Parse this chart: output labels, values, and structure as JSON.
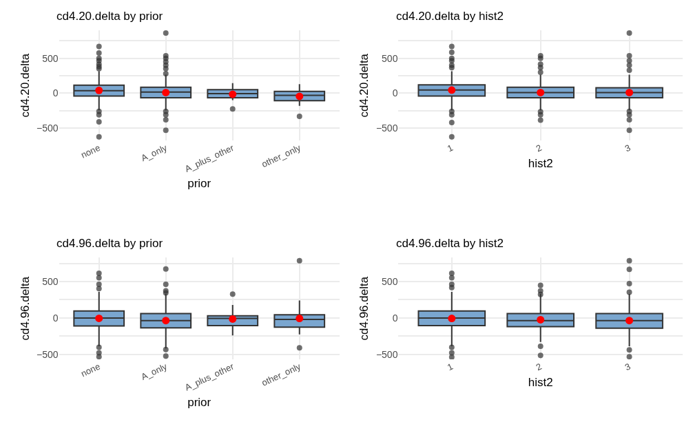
{
  "chart_data": [
    {
      "type": "box",
      "title": "cd4.20.delta by prior",
      "xlabel": "prior",
      "ylabel": "cd4.20.delta",
      "categories": [
        "none",
        "A_only",
        "A_plus_other",
        "other_only"
      ],
      "ylim": [
        -680,
        900
      ],
      "yticks": [
        -500,
        {
          "value": -250,
          "label": null
        },
        0,
        {
          "value": 250,
          "label": null
        },
        500,
        {
          "value": 750,
          "label": null
        }
      ],
      "grid": true,
      "series": [
        {
          "color": "#7aa6cf",
          "boxes": [
            {
              "low": -245,
              "q1": -40,
              "median": 35,
              "q3": 115,
              "high": 315,
              "mean": 40,
              "outliers": [
                670,
                575,
                500,
                465,
                415,
                380,
                350,
                -260,
                -310,
                -410,
                -625
              ]
            },
            {
              "low": -245,
              "q1": -65,
              "median": 17,
              "q3": 85,
              "high": 265,
              "mean": 10,
              "outliers": [
                860,
                535,
                500,
                450,
                400,
                350,
                280,
                -260,
                -310,
                -380,
                -530
              ]
            },
            {
              "low": -100,
              "q1": -65,
              "median": -5,
              "q3": 50,
              "high": 145,
              "mean": -15,
              "outliers": [
                -225
              ]
            },
            {
              "low": -180,
              "q1": -108,
              "median": -30,
              "q3": 25,
              "high": 130,
              "mean": -45,
              "outliers": [
                -330
              ]
            }
          ]
        }
      ]
    },
    {
      "type": "box",
      "title": "cd4.20.delta by hist2",
      "xlabel": "hist2",
      "ylabel": "cd4.20.delta",
      "categories": [
        "1",
        "2",
        "3"
      ],
      "ylim": [
        -680,
        900
      ],
      "yticks": [
        -500,
        {
          "value": -250,
          "label": null
        },
        0,
        {
          "value": 250,
          "label": null
        },
        500,
        {
          "value": 750,
          "label": null
        }
      ],
      "grid": true,
      "series": [
        {
          "color": "#7aa6cf",
          "boxes": [
            {
              "low": -245,
              "q1": -40,
              "median": 45,
              "q3": 120,
              "high": 315,
              "mean": 45,
              "outliers": [
                670,
                585,
                500,
                465,
                400,
                365,
                -260,
                -310,
                -420,
                -625
              ]
            },
            {
              "low": -245,
              "q1": -65,
              "median": 10,
              "q3": 85,
              "high": 265,
              "mean": 10,
              "outliers": [
                535,
                500,
                415,
                365,
                300,
                -265,
                -310,
                -385
              ]
            },
            {
              "low": -245,
              "q1": -65,
              "median": 10,
              "q3": 78,
              "high": 265,
              "mean": 10,
              "outliers": [
                860,
                535,
                465,
                400,
                330,
                -260,
                -310,
                -380,
                -530
              ]
            }
          ]
        }
      ]
    },
    {
      "type": "box",
      "title": "cd4.96.delta by prior",
      "xlabel": "prior",
      "ylabel": "cd4.96.delta",
      "categories": [
        "none",
        "A_only",
        "A_plus_other",
        "other_only"
      ],
      "ylim": [
        -570,
        830
      ],
      "yticks": [
        -500,
        {
          "value": -250,
          "label": null
        },
        0,
        {
          "value": 250,
          "label": null
        },
        500,
        {
          "value": 750,
          "label": null
        }
      ],
      "grid": true,
      "series": [
        {
          "color": "#7aa6cf",
          "boxes": [
            {
              "low": -390,
              "q1": -111,
              "median": 0,
              "q3": 96,
              "high": 360,
              "mean": -5,
              "outliers": [
                614,
                554,
                464,
                404,
                -404,
                -479,
                -533
              ]
            },
            {
              "low": -420,
              "q1": -135,
              "median": -36,
              "q3": 60,
              "high": 330,
              "mean": -36,
              "outliers": [
                674,
                464,
                374,
                344,
                -434,
                -524
              ]
            },
            {
              "low": -240,
              "q1": -105,
              "median": -6,
              "q3": 30,
              "high": 180,
              "mean": -15,
              "outliers": [
                329
              ]
            },
            {
              "low": -225,
              "q1": -126,
              "median": -21,
              "q3": 45,
              "high": 240,
              "mean": -6,
              "outliers": [
                787,
                -410
              ]
            }
          ]
        }
      ]
    },
    {
      "type": "box",
      "title": "cd4.96.delta by hist2",
      "xlabel": "hist2",
      "ylabel": "cd4.96.delta",
      "categories": [
        "1",
        "2",
        "3"
      ],
      "ylim": [
        -570,
        830
      ],
      "yticks": [
        -500,
        {
          "value": -250,
          "label": null
        },
        0,
        {
          "value": 250,
          "label": null
        },
        500,
        {
          "value": 750,
          "label": null
        }
      ],
      "grid": true,
      "series": [
        {
          "color": "#7aa6cf",
          "boxes": [
            {
              "low": -390,
              "q1": -105,
              "median": 0,
              "q3": 96,
              "high": 360,
              "mean": -6,
              "outliers": [
                614,
                554,
                464,
                419,
                -404,
                -479,
                -539
              ]
            },
            {
              "low": -330,
              "q1": -120,
              "median": -36,
              "q3": 60,
              "high": 330,
              "mean": -24,
              "outliers": [
                449,
                374,
                323,
                -390,
                -515
              ]
            },
            {
              "low": -390,
              "q1": -141,
              "median": -36,
              "q3": 60,
              "high": 330,
              "mean": -36,
              "outliers": [
                787,
                668,
                473,
                353,
                -440,
                -533
              ]
            }
          ]
        }
      ]
    }
  ]
}
